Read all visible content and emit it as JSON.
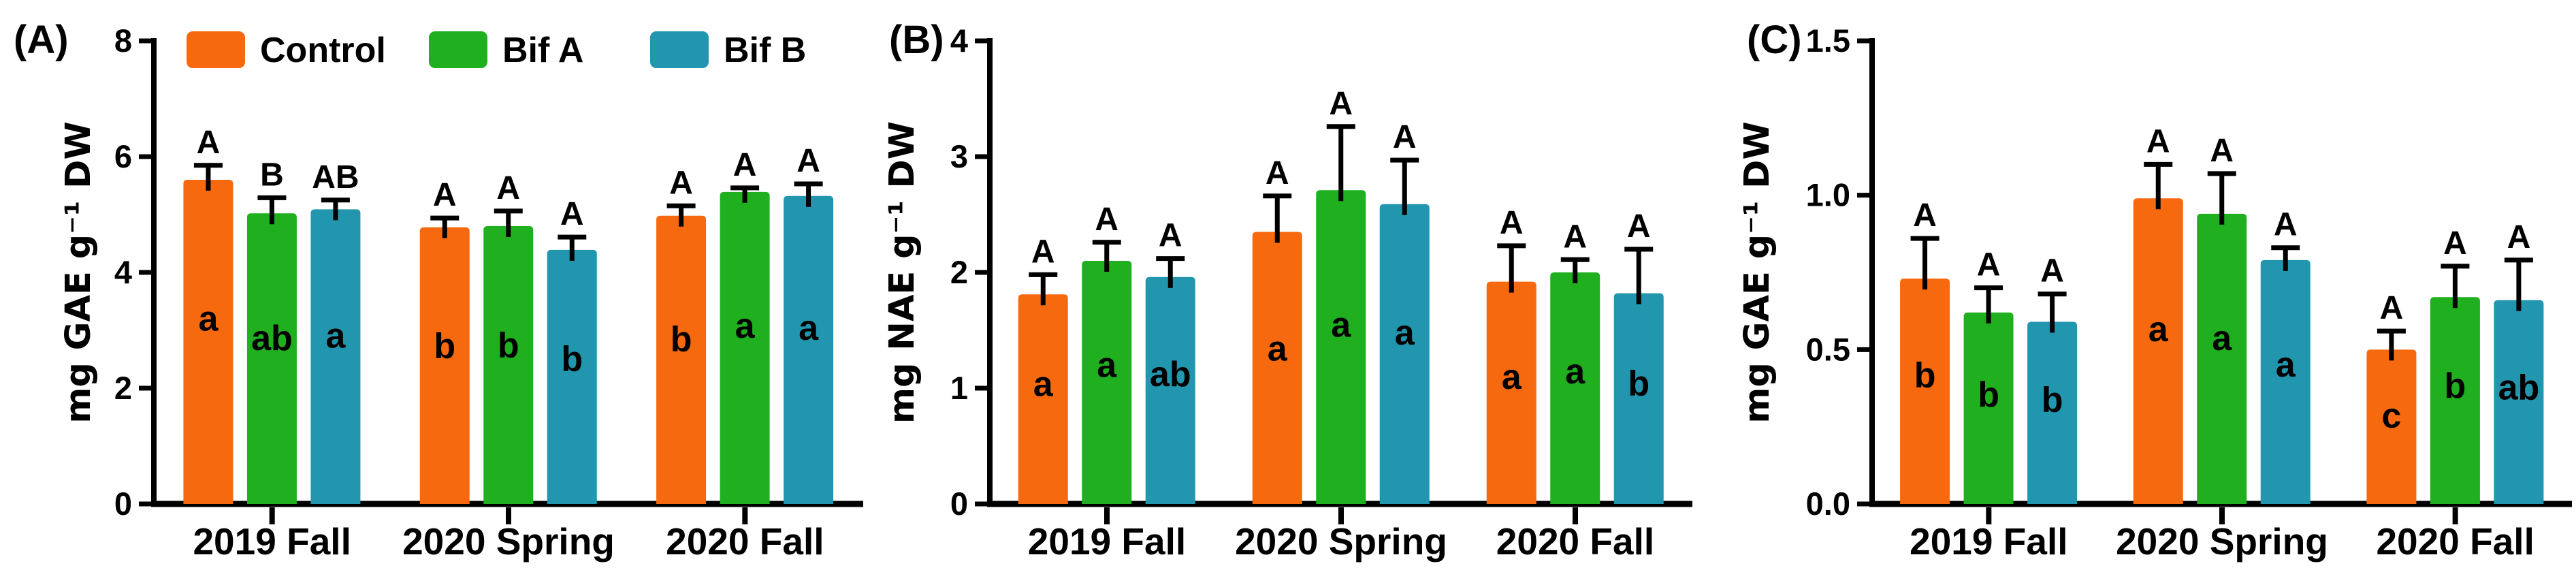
{
  "figure": {
    "background": "#ffffff",
    "legend": {
      "position": "top of panel A",
      "items": [
        {
          "label": "Control",
          "color": "#F7690E"
        },
        {
          "label": "Bif A",
          "color": "#1FAF1F"
        },
        {
          "label": "Bif B",
          "color": "#2296AE"
        }
      ]
    }
  },
  "chart_data": [
    {
      "type": "bar",
      "panel_label": "(A)",
      "ylabel": "mg GAE g⁻¹ DW",
      "ylim": [
        0,
        8
      ],
      "yticks": {
        "values": [
          0,
          2,
          4,
          6,
          8
        ],
        "labels": [
          "0",
          "2",
          "4",
          "6",
          "8"
        ]
      },
      "categories": [
        "2019 Fall",
        "2020 Spring",
        "2020 Fall"
      ],
      "grid": false,
      "error_bars": "upper-sd-with-cap",
      "series": [
        {
          "name": "Control",
          "color": "#F7690E",
          "values": [
            5.6,
            4.78,
            4.98
          ],
          "errors": [
            0.25,
            0.16,
            0.17
          ],
          "sig_above": [
            "A",
            "A",
            "A"
          ],
          "sig_inside": [
            "a",
            "b",
            "b"
          ]
        },
        {
          "name": "Bif A",
          "color": "#1FAF1F",
          "values": [
            5.02,
            4.8,
            5.39
          ],
          "errors": [
            0.27,
            0.26,
            0.07
          ],
          "sig_above": [
            "B",
            "A",
            "A"
          ],
          "sig_inside": [
            "ab",
            "b",
            "a"
          ]
        },
        {
          "name": "Bif B",
          "color": "#2296AE",
          "values": [
            5.09,
            4.39,
            5.32
          ],
          "errors": [
            0.16,
            0.22,
            0.21
          ],
          "sig_above": [
            "AB",
            "A",
            "A"
          ],
          "sig_inside": [
            "a",
            "b",
            "a"
          ]
        }
      ]
    },
    {
      "type": "bar",
      "panel_label": "(B)",
      "ylabel": "mg NAE g⁻¹ DW",
      "ylim": [
        0,
        4
      ],
      "yticks": {
        "values": [
          0,
          1,
          2,
          3,
          4
        ],
        "labels": [
          "0",
          "1",
          "2",
          "3",
          "4"
        ]
      },
      "categories": [
        "2019 Fall",
        "2020 Spring",
        "2020 Fall"
      ],
      "grid": false,
      "error_bars": "upper-sd-with-cap",
      "series": [
        {
          "name": "Control",
          "color": "#F7690E",
          "values": [
            1.81,
            2.35,
            1.92
          ],
          "errors": [
            0.17,
            0.31,
            0.31
          ],
          "sig_above": [
            "A",
            "A",
            "A"
          ],
          "sig_inside": [
            "a",
            "a",
            "a"
          ]
        },
        {
          "name": "Bif A",
          "color": "#1FAF1F",
          "values": [
            2.1,
            2.71,
            2.0
          ],
          "errors": [
            0.16,
            0.55,
            0.11
          ],
          "sig_above": [
            "A",
            "A",
            "A"
          ],
          "sig_inside": [
            "a",
            "a",
            "a"
          ]
        },
        {
          "name": "Bif B",
          "color": "#2296AE",
          "values": [
            1.96,
            2.59,
            1.82
          ],
          "errors": [
            0.16,
            0.38,
            0.38
          ],
          "sig_above": [
            "A",
            "A",
            "A"
          ],
          "sig_inside": [
            "ab",
            "a",
            "b"
          ]
        }
      ]
    },
    {
      "type": "bar",
      "panel_label": "(C)",
      "ylabel": "mg GAE g⁻¹ DW",
      "ylim": [
        0,
        1.5
      ],
      "yticks": {
        "values": [
          0,
          0.5,
          1.0,
          1.5
        ],
        "labels": [
          "0.0",
          "0.5",
          "1.0",
          "1.5"
        ]
      },
      "categories": [
        "2019 Fall",
        "2020 Spring",
        "2020 Fall"
      ],
      "grid": false,
      "error_bars": "upper-sd-with-cap",
      "series": [
        {
          "name": "Control",
          "color": "#F7690E",
          "values": [
            0.73,
            0.99,
            0.5
          ],
          "errors": [
            0.13,
            0.11,
            0.06
          ],
          "sig_above": [
            "A",
            "A",
            "A"
          ],
          "sig_inside": [
            "b",
            "a",
            "c"
          ]
        },
        {
          "name": "Bif A",
          "color": "#1FAF1F",
          "values": [
            0.62,
            0.94,
            0.67
          ],
          "errors": [
            0.08,
            0.13,
            0.1
          ],
          "sig_above": [
            "A",
            "A",
            "A"
          ],
          "sig_inside": [
            "b",
            "a",
            "b"
          ]
        },
        {
          "name": "Bif B",
          "color": "#2296AE",
          "values": [
            0.59,
            0.79,
            0.66
          ],
          "errors": [
            0.09,
            0.04,
            0.13
          ],
          "sig_above": [
            "A",
            "A",
            "A"
          ],
          "sig_inside": [
            "b",
            "a",
            "ab"
          ]
        }
      ]
    }
  ]
}
